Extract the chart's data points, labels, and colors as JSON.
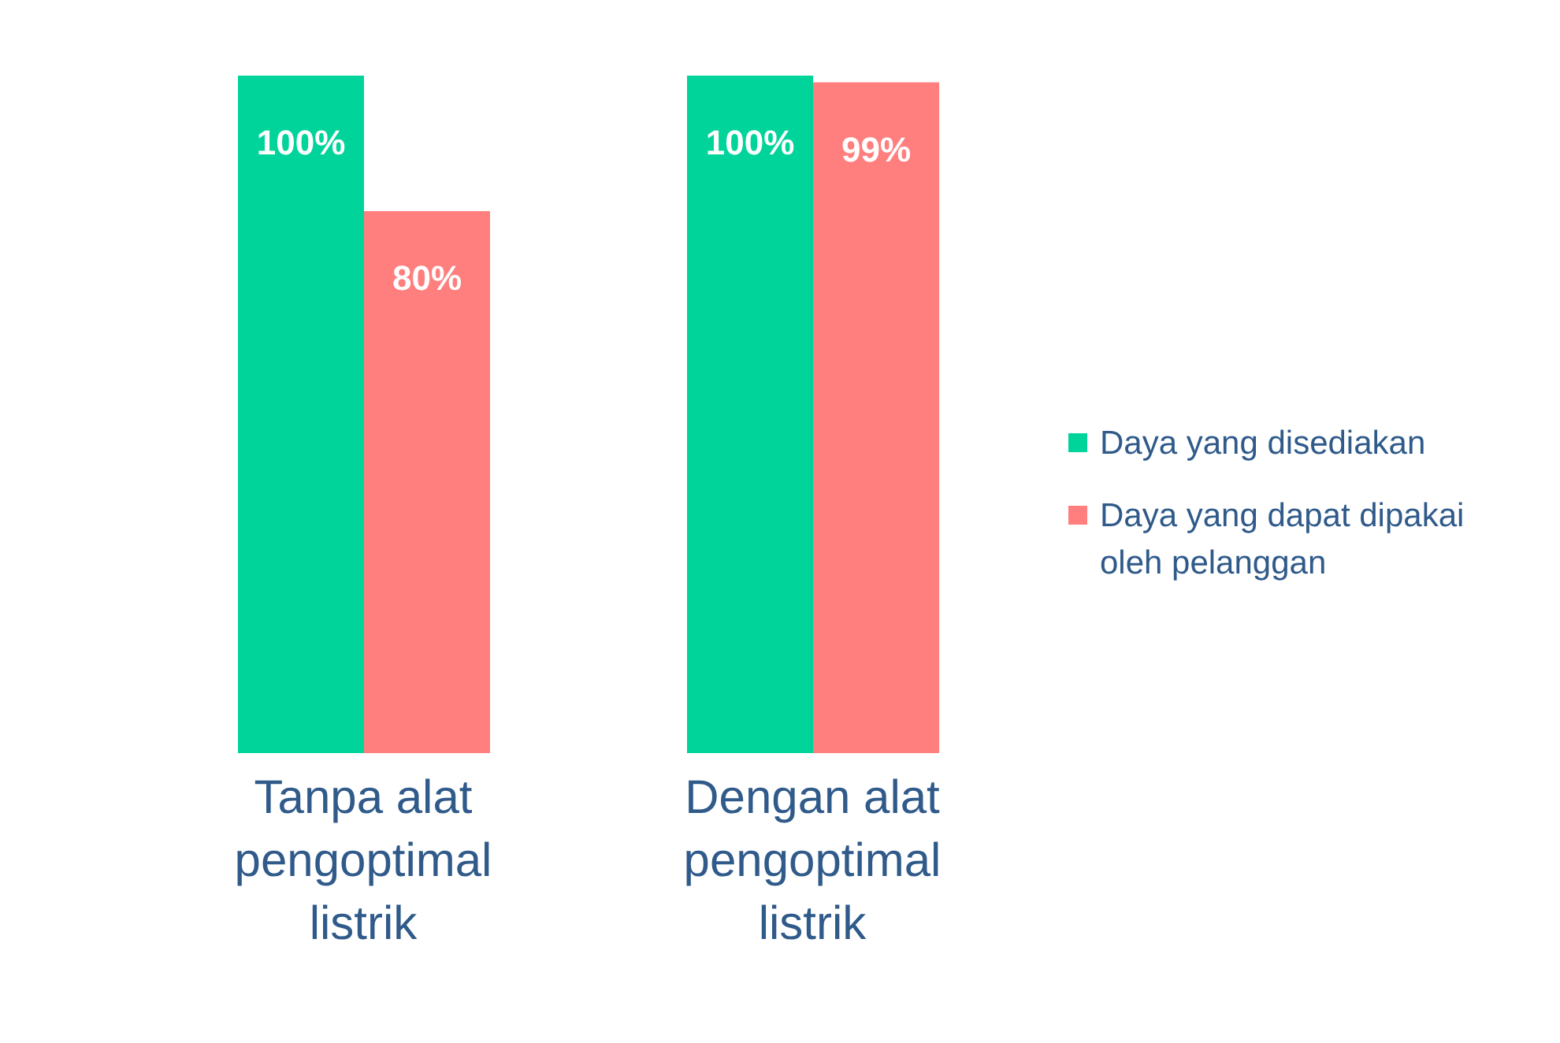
{
  "chart_data": {
    "type": "bar",
    "categories": [
      "Tanpa alat pengoptimal listrik",
      "Dengan alat pengoptimal listrik"
    ],
    "series": [
      {
        "name": "Daya yang disediakan",
        "color": "#00d49a",
        "values": [
          100,
          100
        ],
        "value_labels": [
          "100%",
          "100%"
        ]
      },
      {
        "name": "Daya yang dapat dipakai oleh pelanggan",
        "color": "#ff7f7f",
        "values": [
          80,
          99
        ],
        "value_labels": [
          "80%",
          "99%"
        ]
      }
    ],
    "legend": "right"
  }
}
